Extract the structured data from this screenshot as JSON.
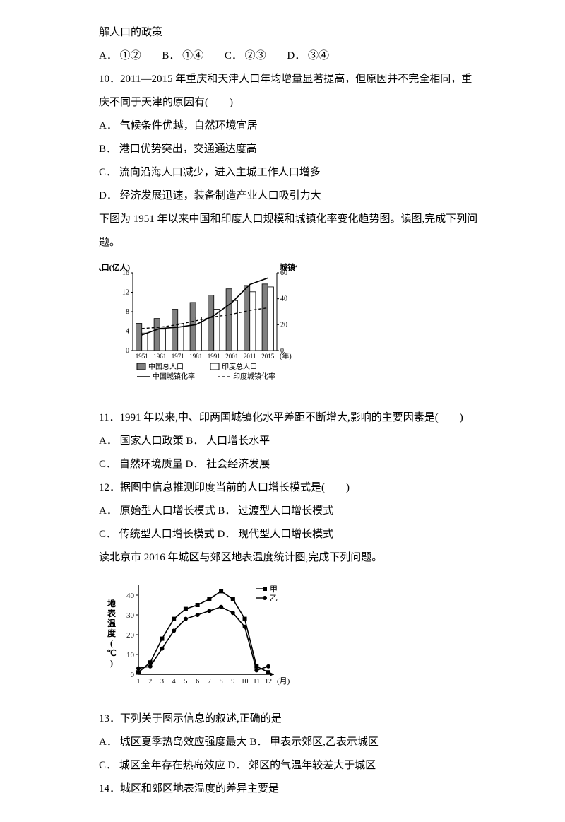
{
  "intro_line": "解人口的政策",
  "q_options_nine": {
    "A": "A．  ①②",
    "B": "B．  ①④",
    "C": "C．  ②③",
    "D": "D．  ③④"
  },
  "q10": {
    "stem": "10．2011—2015 年重庆和天津人口年均增量显著提高，但原因并不完全相同，重庆不同于天津的原因有(　　)",
    "A": "A．  气候条件优越，自然环境宜居",
    "B": "B．  港口优势突出，交通通达度高",
    "C": "C．  流向沿海人口减少，进入主城工作人口增多",
    "D": "D．  经济发展迅速，装备制造产业人口吸引力大"
  },
  "fig1_caption": "下图为 1951 年以来中国和印度人口规模和城镇化率变化趋势图。读图,完成下列问题。",
  "fig1": {
    "ylabel_left": "总人口(亿人)",
    "ylabel_right": "城镇化率(%)",
    "xlabel": "(年)",
    "left_ticks": [
      0,
      4,
      8,
      12,
      16
    ],
    "right_ticks": [
      0,
      20,
      40,
      60
    ],
    "years": [
      "1951",
      "1961",
      "1971",
      "1981",
      "1991",
      "2001",
      "2011",
      "2015"
    ],
    "china_pop": [
      5.6,
      6.6,
      8.5,
      9.9,
      11.4,
      12.7,
      13.4,
      13.7
    ],
    "india_pop": [
      3.6,
      4.4,
      5.5,
      6.9,
      8.5,
      10.3,
      12.1,
      13.1
    ],
    "china_urb": [
      12,
      17,
      18,
      20,
      27,
      37,
      51,
      56
    ],
    "india_urb": [
      17,
      18,
      20,
      23,
      26,
      28,
      31,
      33
    ],
    "legend": {
      "china_pop": "中国总人口",
      "india_pop": "印度总人口",
      "china_urb": "中国城镇化率",
      "india_urb": "印度城镇化率"
    },
    "colors": {
      "bar_china": "#808080",
      "bar_india": "#ffffff",
      "bar_border": "#000000",
      "line_china": "#000000",
      "line_india": "#000000",
      "axis": "#000000",
      "text": "#000000"
    }
  },
  "q11": {
    "stem": "11．1991 年以来,中、印两国城镇化水平差距不断增大,影响的主要因素是(　　)",
    "A": "A．  国家人口政策 B．  人口增长水平",
    "C": "C．  自然环境质量 D．  社会经济发展"
  },
  "q12": {
    "stem": "12．据图中信息推测印度当前的人口增长模式是(　　)",
    "A": "A．  原始型人口增长模式 B．  过渡型人口增长模式",
    "C": "C．  传统型人口增长模式 D．  现代型人口增长模式"
  },
  "fig2_caption": "读北京市 2016 年城区与郊区地表温度统计图,完成下列问题。",
  "fig2": {
    "ylabel": "地表温度(℃)",
    "xlabel": "(月)",
    "months": [
      1,
      2,
      3,
      4,
      5,
      6,
      7,
      8,
      9,
      10,
      11,
      12
    ],
    "jia": [
      1,
      6,
      18,
      28,
      33,
      35,
      38,
      42,
      38,
      28,
      4,
      1
    ],
    "yi": [
      3,
      4,
      13,
      22,
      28,
      30,
      32,
      34,
      31,
      24,
      2,
      4
    ],
    "yticks": [
      0,
      10,
      20,
      30,
      40
    ],
    "legend": {
      "jia": "甲",
      "yi": "乙"
    },
    "colors": {
      "line": "#000000",
      "marker_jia": "#000000",
      "marker_yi": "#000000",
      "axis": "#000000",
      "text": "#000000"
    }
  },
  "q13": {
    "stem": "13．下列关于图示信息的叙述,正确的是",
    "A": "A．  城区夏季热岛效应强度最大 B．  甲表示郊区,乙表示城区",
    "C": "C．  城区全年存在热岛效应      D．  郊区的气温年较差大于城区"
  },
  "q14": {
    "stem": "14．城区和郊区地表温度的差异主要是"
  }
}
